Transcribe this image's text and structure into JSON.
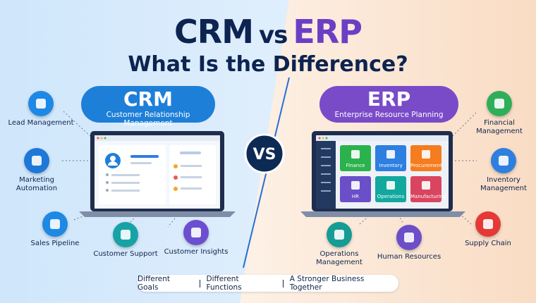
{
  "title": {
    "left": "CRM",
    "middle": "vs",
    "right": "ERP"
  },
  "subtitle": "What Is the Difference?",
  "crm": {
    "name": "CRM",
    "full_name": "Customer Relationship Management",
    "features": [
      "Lead Management",
      "Marketing Automation",
      "Sales Pipeline",
      "Customer Support",
      "Customer Insights"
    ]
  },
  "erp": {
    "name": "ERP",
    "full_name": "Enterprise Resource Planning",
    "features": [
      "Financial Management",
      "Inventory Management",
      "Supply Chain",
      "Operations Management",
      "Human Resources"
    ],
    "modules": [
      "Finance",
      "Inventory",
      "Procurement",
      "HR",
      "Operations",
      "Manufacturing"
    ]
  },
  "versus": "VS",
  "footer": [
    "Different Goals",
    "Different Functions",
    "A Stronger Business Together"
  ]
}
